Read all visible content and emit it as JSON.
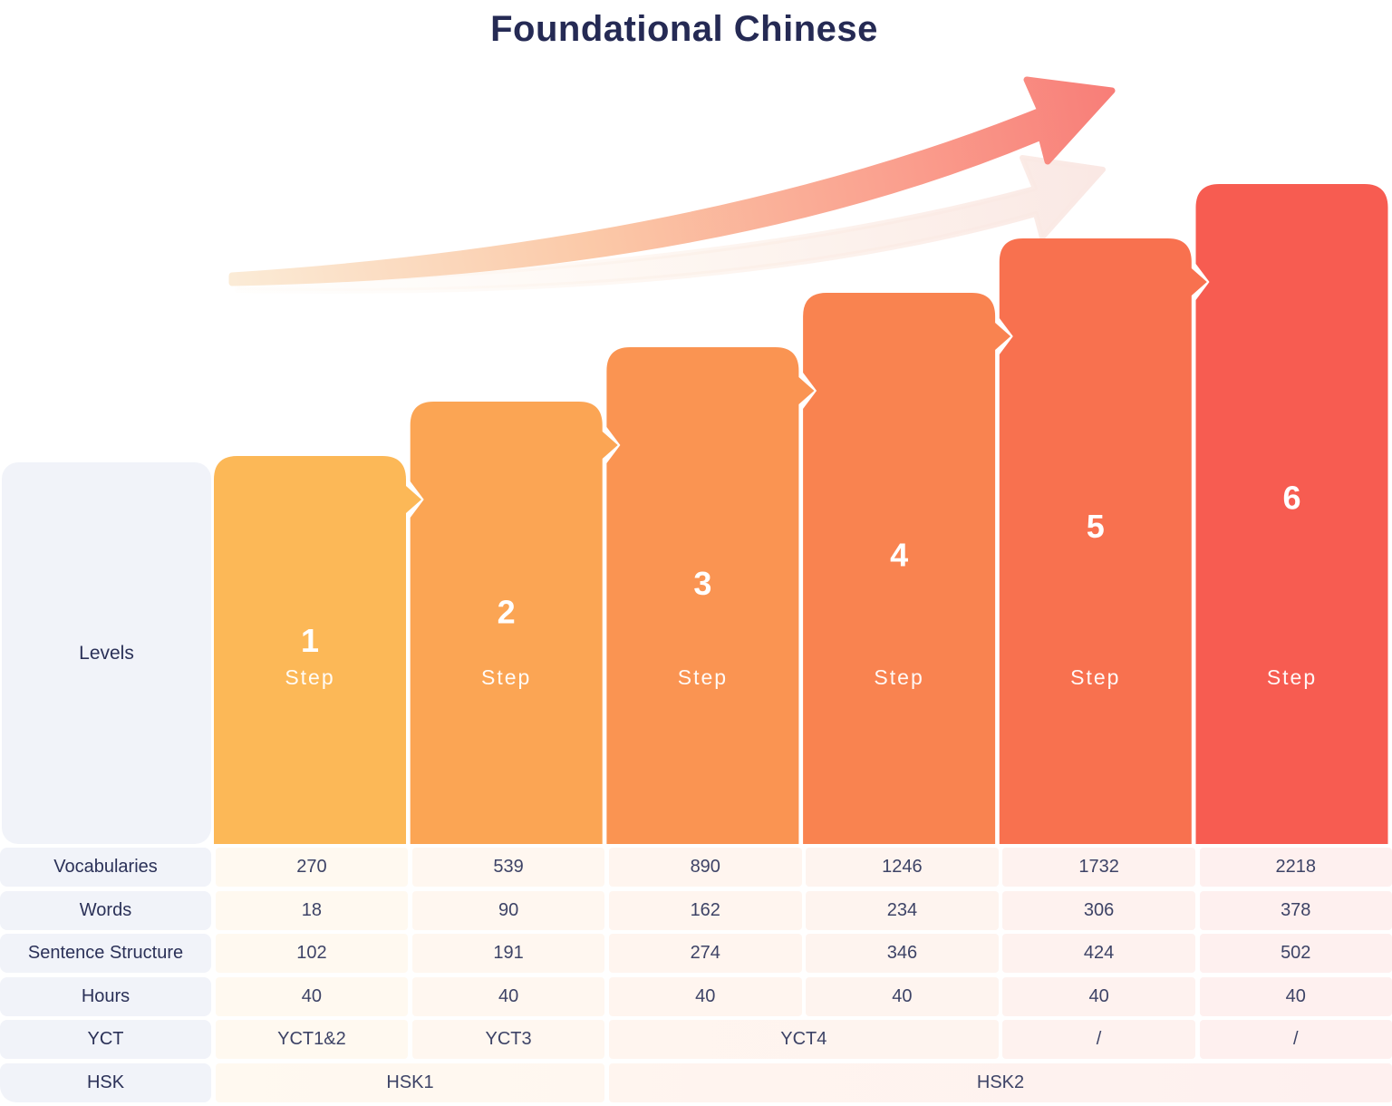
{
  "title": "Foundational Chinese",
  "chart_data": {
    "type": "bar",
    "title": "Foundational Chinese",
    "categories": [
      "Step 1",
      "Step 2",
      "Step 3",
      "Step 4",
      "Step 5",
      "Step 6"
    ],
    "series": [
      {
        "name": "Vocabularies",
        "values": [
          270,
          539,
          890,
          1246,
          1732,
          2218
        ]
      },
      {
        "name": "Words",
        "values": [
          18,
          90,
          162,
          234,
          306,
          378
        ]
      },
      {
        "name": "Sentence Structure",
        "values": [
          102,
          191,
          274,
          346,
          424,
          502
        ]
      },
      {
        "name": "Hours",
        "values": [
          40,
          40,
          40,
          40,
          40,
          40
        ]
      },
      {
        "name": "YCT",
        "values": [
          "YCT1&2",
          "YCT3",
          "YCT4",
          "YCT4",
          "/",
          "/"
        ]
      },
      {
        "name": "HSK",
        "values": [
          "HSK1",
          "HSK1",
          "HSK2",
          "HSK2",
          "HSK2",
          "HSK2"
        ]
      }
    ],
    "legend_position": "none",
    "grid": false,
    "annotations": [
      "upward growth arrow"
    ]
  },
  "levels": {
    "header": "Levels",
    "steps": [
      {
        "number": "1",
        "label": "Step",
        "color": "#FCB857"
      },
      {
        "number": "2",
        "label": "Step",
        "color": "#FBA554"
      },
      {
        "number": "3",
        "label": "Step",
        "color": "#FA9452"
      },
      {
        "number": "4",
        "label": "Step",
        "color": "#F98350"
      },
      {
        "number": "5",
        "label": "Step",
        "color": "#F8714F"
      },
      {
        "number": "6",
        "label": "Step",
        "color": "#F75C51"
      }
    ]
  },
  "table": {
    "rows": [
      {
        "label": "Vocabularies",
        "cells": [
          {
            "text": "270",
            "span": 1
          },
          {
            "text": "539",
            "span": 1
          },
          {
            "text": "890",
            "span": 1
          },
          {
            "text": "1246",
            "span": 1
          },
          {
            "text": "1732",
            "span": 1
          },
          {
            "text": "2218",
            "span": 1
          }
        ]
      },
      {
        "label": "Words",
        "cells": [
          {
            "text": "18",
            "span": 1
          },
          {
            "text": "90",
            "span": 1
          },
          {
            "text": "162",
            "span": 1
          },
          {
            "text": "234",
            "span": 1
          },
          {
            "text": "306",
            "span": 1
          },
          {
            "text": "378",
            "span": 1
          }
        ]
      },
      {
        "label": "Sentence Structure",
        "cells": [
          {
            "text": "102",
            "span": 1
          },
          {
            "text": "191",
            "span": 1
          },
          {
            "text": "274",
            "span": 1
          },
          {
            "text": "346",
            "span": 1
          },
          {
            "text": "424",
            "span": 1
          },
          {
            "text": "502",
            "span": 1
          }
        ]
      },
      {
        "label": "Hours",
        "cells": [
          {
            "text": "40",
            "span": 1
          },
          {
            "text": "40",
            "span": 1
          },
          {
            "text": "40",
            "span": 1
          },
          {
            "text": "40",
            "span": 1
          },
          {
            "text": "40",
            "span": 1
          },
          {
            "text": "40",
            "span": 1
          }
        ]
      },
      {
        "label": "YCT",
        "cells": [
          {
            "text": "YCT1&2",
            "span": 1
          },
          {
            "text": "YCT3",
            "span": 1
          },
          {
            "text": "YCT4",
            "span": 2
          },
          {
            "text": "/",
            "span": 1
          },
          {
            "text": "/",
            "span": 1
          }
        ]
      },
      {
        "label": "HSK",
        "cells": [
          {
            "text": "HSK1",
            "span": 2
          },
          {
            "text": "HSK2",
            "span": 4
          }
        ]
      }
    ]
  },
  "colors": {
    "title_text": "#252A54",
    "label_cell_bg": "#F1F3F9",
    "label_text": "#2B3158",
    "value_text": "#3D4366",
    "arrow_tail": "#FBEBD6",
    "arrow_head": "#F87E78",
    "shadow_arrow": "#FAE8E4"
  }
}
